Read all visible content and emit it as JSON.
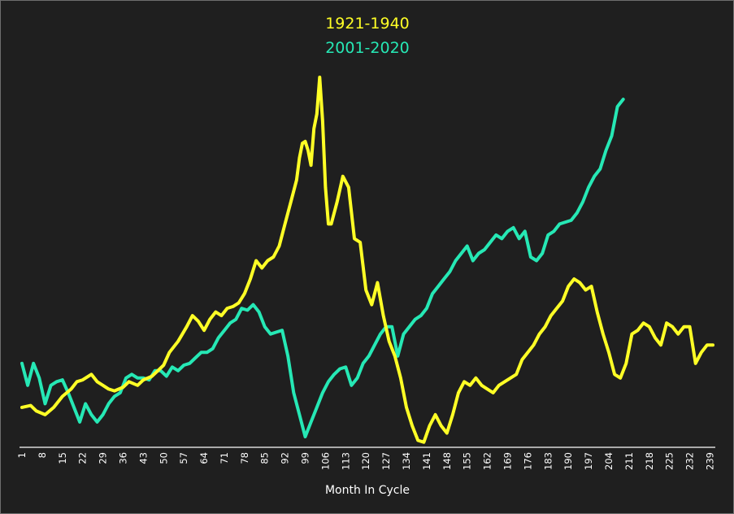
{
  "chart_data": {
    "type": "line",
    "title": "",
    "xlabel": "Month In Cycle",
    "ylabel": "",
    "legend_position": "top-center",
    "grid": false,
    "xlim": [
      1,
      240
    ],
    "ylim": [
      0,
      100
    ],
    "x_ticks": [
      1,
      8,
      15,
      22,
      29,
      36,
      43,
      50,
      57,
      64,
      71,
      78,
      85,
      92,
      99,
      106,
      113,
      120,
      127,
      134,
      141,
      148,
      155,
      162,
      169,
      176,
      183,
      190,
      197,
      204,
      211,
      218,
      225,
      232,
      239
    ],
    "series": [
      {
        "name": "1921-1940",
        "color": "#ffff26",
        "points": [
          [
            1,
            10
          ],
          [
            4,
            10.5
          ],
          [
            6,
            9
          ],
          [
            9,
            8
          ],
          [
            12,
            10
          ],
          [
            15,
            13
          ],
          [
            18,
            15
          ],
          [
            20,
            17
          ],
          [
            22,
            17.5
          ],
          [
            25,
            19
          ],
          [
            27,
            17
          ],
          [
            29,
            16
          ],
          [
            31,
            15
          ],
          [
            33,
            14.5
          ],
          [
            36,
            15.5
          ],
          [
            38,
            17
          ],
          [
            41,
            16
          ],
          [
            43,
            17.5
          ],
          [
            46,
            18.5
          ],
          [
            48,
            20
          ],
          [
            50,
            21.5
          ],
          [
            52,
            25
          ],
          [
            55,
            28
          ],
          [
            58,
            32
          ],
          [
            60,
            35
          ],
          [
            62,
            33.5
          ],
          [
            64,
            31
          ],
          [
            66,
            34
          ],
          [
            68,
            36
          ],
          [
            70,
            35
          ],
          [
            72,
            37
          ],
          [
            74,
            37.5
          ],
          [
            76,
            38.5
          ],
          [
            78,
            41
          ],
          [
            80,
            45
          ],
          [
            82,
            50
          ],
          [
            84,
            48
          ],
          [
            86,
            50
          ],
          [
            88,
            51
          ],
          [
            90,
            54
          ],
          [
            92,
            60
          ],
          [
            94,
            66
          ],
          [
            96,
            72
          ],
          [
            97,
            78
          ],
          [
            98,
            82
          ],
          [
            99,
            82.5
          ],
          [
            100,
            80
          ],
          [
            101,
            76
          ],
          [
            102,
            86
          ],
          [
            103,
            90
          ],
          [
            104,
            100
          ],
          [
            105,
            88
          ],
          [
            106,
            70
          ],
          [
            107,
            60
          ],
          [
            108,
            60
          ],
          [
            110,
            66
          ],
          [
            112,
            73
          ],
          [
            114,
            70
          ],
          [
            116,
            56
          ],
          [
            118,
            55
          ],
          [
            120,
            42
          ],
          [
            122,
            38
          ],
          [
            124,
            44
          ],
          [
            126,
            35
          ],
          [
            128,
            28
          ],
          [
            130,
            24
          ],
          [
            132,
            18
          ],
          [
            134,
            10
          ],
          [
            136,
            5
          ],
          [
            138,
            1
          ],
          [
            140,
            0.5
          ],
          [
            142,
            5
          ],
          [
            144,
            8
          ],
          [
            146,
            5
          ],
          [
            148,
            3
          ],
          [
            150,
            8
          ],
          [
            152,
            14
          ],
          [
            154,
            17
          ],
          [
            156,
            16
          ],
          [
            158,
            18
          ],
          [
            160,
            16
          ],
          [
            162,
            15
          ],
          [
            164,
            14
          ],
          [
            166,
            16
          ],
          [
            168,
            17
          ],
          [
            170,
            18
          ],
          [
            172,
            19
          ],
          [
            174,
            23
          ],
          [
            176,
            25
          ],
          [
            178,
            27
          ],
          [
            180,
            30
          ],
          [
            182,
            32
          ],
          [
            184,
            35
          ],
          [
            186,
            37
          ],
          [
            188,
            39
          ],
          [
            190,
            43
          ],
          [
            192,
            45
          ],
          [
            194,
            44
          ],
          [
            196,
            42
          ],
          [
            198,
            43
          ],
          [
            200,
            36
          ],
          [
            202,
            30
          ],
          [
            204,
            25
          ],
          [
            206,
            19
          ],
          [
            208,
            18
          ],
          [
            210,
            22
          ],
          [
            212,
            30
          ],
          [
            214,
            31
          ],
          [
            216,
            33
          ],
          [
            218,
            32
          ],
          [
            220,
            29
          ],
          [
            222,
            27
          ],
          [
            224,
            33
          ],
          [
            226,
            32
          ],
          [
            228,
            30
          ],
          [
            230,
            32
          ],
          [
            232,
            32
          ],
          [
            234,
            22
          ],
          [
            236,
            25
          ],
          [
            238,
            27
          ],
          [
            240,
            27
          ]
        ]
      },
      {
        "name": "2001-2020",
        "color": "#26e8b5",
        "points": [
          [
            1,
            22
          ],
          [
            3,
            16
          ],
          [
            5,
            22
          ],
          [
            7,
            18
          ],
          [
            9,
            11
          ],
          [
            11,
            16
          ],
          [
            13,
            17
          ],
          [
            15,
            17.5
          ],
          [
            17,
            14
          ],
          [
            19,
            10
          ],
          [
            21,
            6
          ],
          [
            23,
            11
          ],
          [
            25,
            8
          ],
          [
            27,
            6
          ],
          [
            29,
            8
          ],
          [
            31,
            11
          ],
          [
            33,
            13
          ],
          [
            35,
            14
          ],
          [
            37,
            18
          ],
          [
            39,
            19
          ],
          [
            41,
            18
          ],
          [
            43,
            18
          ],
          [
            45,
            17.5
          ],
          [
            47,
            20
          ],
          [
            49,
            20
          ],
          [
            51,
            18.5
          ],
          [
            53,
            21
          ],
          [
            55,
            20
          ],
          [
            57,
            21.5
          ],
          [
            59,
            22
          ],
          [
            61,
            23.5
          ],
          [
            63,
            25
          ],
          [
            65,
            25
          ],
          [
            67,
            26
          ],
          [
            69,
            29
          ],
          [
            71,
            31
          ],
          [
            73,
            33
          ],
          [
            75,
            34
          ],
          [
            77,
            37
          ],
          [
            79,
            36.5
          ],
          [
            81,
            38
          ],
          [
            83,
            36
          ],
          [
            85,
            32
          ],
          [
            87,
            30
          ],
          [
            89,
            30.5
          ],
          [
            91,
            31
          ],
          [
            93,
            24
          ],
          [
            95,
            14
          ],
          [
            97,
            8
          ],
          [
            99,
            2
          ],
          [
            101,
            6
          ],
          [
            103,
            10
          ],
          [
            105,
            14
          ],
          [
            107,
            17
          ],
          [
            109,
            19
          ],
          [
            111,
            20.5
          ],
          [
            113,
            21
          ],
          [
            115,
            16
          ],
          [
            117,
            18
          ],
          [
            119,
            22
          ],
          [
            121,
            24
          ],
          [
            123,
            27
          ],
          [
            125,
            30
          ],
          [
            127,
            32
          ],
          [
            129,
            32
          ],
          [
            131,
            24
          ],
          [
            133,
            30
          ],
          [
            135,
            32
          ],
          [
            137,
            34
          ],
          [
            139,
            35
          ],
          [
            141,
            37
          ],
          [
            143,
            41
          ],
          [
            145,
            43
          ],
          [
            147,
            45
          ],
          [
            149,
            47
          ],
          [
            151,
            50
          ],
          [
            153,
            52
          ],
          [
            155,
            54
          ],
          [
            157,
            50
          ],
          [
            159,
            52
          ],
          [
            161,
            53
          ],
          [
            163,
            55
          ],
          [
            165,
            57
          ],
          [
            167,
            56
          ],
          [
            169,
            58
          ],
          [
            171,
            59
          ],
          [
            173,
            56
          ],
          [
            175,
            58
          ],
          [
            177,
            51
          ],
          [
            179,
            50
          ],
          [
            181,
            52
          ],
          [
            183,
            57
          ],
          [
            185,
            58
          ],
          [
            187,
            60
          ],
          [
            189,
            60.5
          ],
          [
            191,
            61
          ],
          [
            193,
            63
          ],
          [
            195,
            66
          ],
          [
            197,
            70
          ],
          [
            199,
            73
          ],
          [
            201,
            75
          ],
          [
            203,
            80
          ],
          [
            205,
            84
          ],
          [
            207,
            92
          ],
          [
            209,
            94
          ]
        ]
      }
    ]
  }
}
